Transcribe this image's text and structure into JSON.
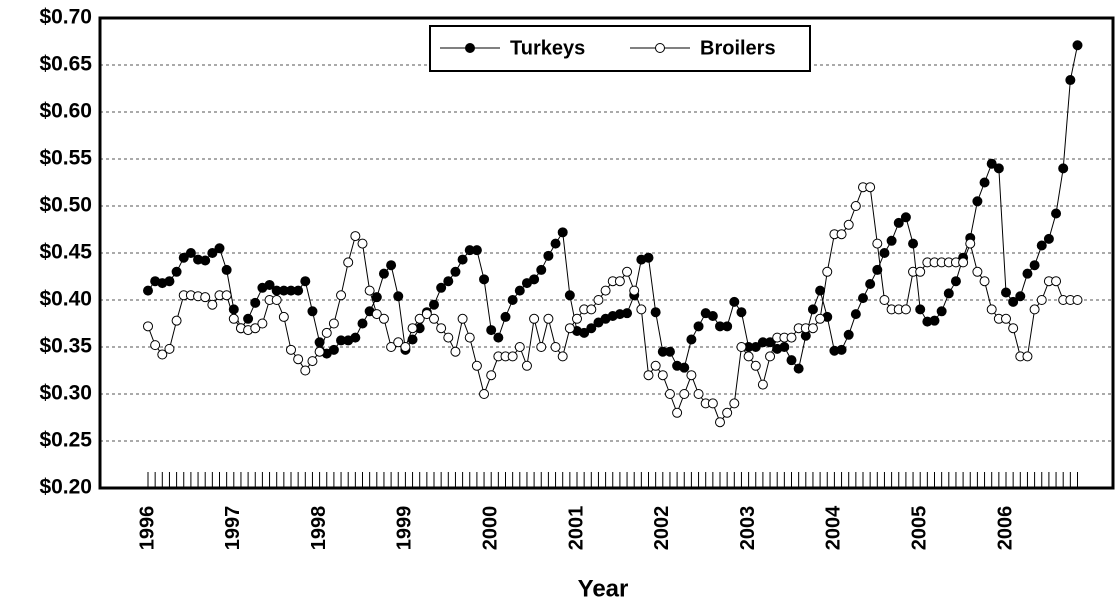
{
  "chart_data": {
    "type": "line",
    "xlabel": "Year",
    "categories": [
      "1996",
      null,
      null,
      null,
      null,
      null,
      null,
      null,
      null,
      null,
      null,
      null,
      "1997",
      null,
      null,
      null,
      null,
      null,
      null,
      null,
      null,
      null,
      null,
      null,
      "1998",
      null,
      null,
      null,
      null,
      null,
      null,
      null,
      null,
      null,
      null,
      null,
      "1999",
      null,
      null,
      null,
      null,
      null,
      null,
      null,
      null,
      null,
      null,
      null,
      "2000",
      null,
      null,
      null,
      null,
      null,
      null,
      null,
      null,
      null,
      null,
      null,
      "2001",
      null,
      null,
      null,
      null,
      null,
      null,
      null,
      null,
      null,
      null,
      null,
      "2002",
      null,
      null,
      null,
      null,
      null,
      null,
      null,
      null,
      null,
      null,
      null,
      "2003",
      null,
      null,
      null,
      null,
      null,
      null,
      null,
      null,
      null,
      null,
      null,
      "2004",
      null,
      null,
      null,
      null,
      null,
      null,
      null,
      null,
      null,
      null,
      null,
      "2005",
      null,
      null,
      null,
      null,
      null,
      null,
      null,
      null,
      null,
      null,
      null,
      "2006",
      null,
      null,
      null,
      null,
      null,
      null,
      null,
      null,
      null,
      null
    ],
    "series": [
      {
        "name": "Turkeys",
        "color": "#000000",
        "marker": "filled",
        "values": [
          0.41,
          0.42,
          0.418,
          0.42,
          0.43,
          0.445,
          0.45,
          0.443,
          0.442,
          0.45,
          0.455,
          0.432,
          0.39,
          0.37,
          0.38,
          0.397,
          0.413,
          0.416,
          0.41,
          0.41,
          0.41,
          0.41,
          0.42,
          0.388,
          0.355,
          0.343,
          0.347,
          0.357,
          0.357,
          0.36,
          0.375,
          0.388,
          0.403,
          0.428,
          0.437,
          0.404,
          0.347,
          0.358,
          0.37,
          0.387,
          0.395,
          0.413,
          0.42,
          0.43,
          0.443,
          0.453,
          0.453,
          0.422,
          0.368,
          0.36,
          0.382,
          0.4,
          0.41,
          0.418,
          0.422,
          0.432,
          0.447,
          0.46,
          0.472,
          0.405,
          0.367,
          0.365,
          0.37,
          0.376,
          0.38,
          0.383,
          0.385,
          0.386,
          0.405,
          0.443,
          0.445,
          0.387,
          0.345,
          0.345,
          0.33,
          0.328,
          0.358,
          0.372,
          0.386,
          0.383,
          0.372,
          0.372,
          0.398,
          0.387,
          0.35,
          0.35,
          0.355,
          0.355,
          0.348,
          0.35,
          0.336,
          0.327,
          0.362,
          0.39,
          0.41,
          0.382,
          0.346,
          0.347,
          0.363,
          0.385,
          0.402,
          0.417,
          0.432,
          0.45,
          0.463,
          0.482,
          0.488,
          0.46,
          0.39,
          0.377,
          0.378,
          0.388,
          0.407,
          0.42,
          0.445,
          0.466,
          0.505,
          0.525,
          0.545,
          0.54,
          0.408,
          0.398,
          0.404,
          0.428,
          0.437,
          0.458,
          0.465,
          0.492,
          0.54,
          0.634,
          0.671
        ]
      },
      {
        "name": "Broilers",
        "color": "#000000",
        "marker": "open",
        "values": [
          0.372,
          0.352,
          0.342,
          0.348,
          0.378,
          0.405,
          0.405,
          0.404,
          0.403,
          0.395,
          0.405,
          0.405,
          0.38,
          0.37,
          0.368,
          0.37,
          0.375,
          0.4,
          0.4,
          0.382,
          0.347,
          0.337,
          0.325,
          0.335,
          0.345,
          0.365,
          0.375,
          0.405,
          0.44,
          0.468,
          0.46,
          0.41,
          0.385,
          0.38,
          0.35,
          0.355,
          0.35,
          0.37,
          0.38,
          0.385,
          0.38,
          0.37,
          0.36,
          0.345,
          0.38,
          0.36,
          0.33,
          0.3,
          0.32,
          0.34,
          0.34,
          0.34,
          0.35,
          0.33,
          0.38,
          0.35,
          0.38,
          0.35,
          0.34,
          0.37,
          0.38,
          0.39,
          0.39,
          0.4,
          0.41,
          0.42,
          0.42,
          0.43,
          0.41,
          0.39,
          0.32,
          0.33,
          0.32,
          0.3,
          0.28,
          0.3,
          0.32,
          0.3,
          0.29,
          0.29,
          0.27,
          0.28,
          0.29,
          0.35,
          0.34,
          0.33,
          0.31,
          0.34,
          0.36,
          0.36,
          0.36,
          0.37,
          0.37,
          0.37,
          0.38,
          0.43,
          0.47,
          0.47,
          0.48,
          0.5,
          0.52,
          0.52,
          0.46,
          0.4,
          0.39,
          0.39,
          0.39,
          0.43,
          0.43,
          0.44,
          0.44,
          0.44,
          0.44,
          0.44,
          0.44,
          0.46,
          0.43,
          0.42,
          0.39,
          0.38,
          0.38,
          0.37,
          0.34,
          0.34,
          0.39,
          0.4,
          0.42,
          0.42,
          0.4,
          0.4,
          0.4
        ]
      }
    ],
    "ylim": [
      0.2,
      0.7
    ],
    "yticks": [
      {
        "value": 0.2,
        "label": "$0.20"
      },
      {
        "value": 0.25,
        "label": "$0.25"
      },
      {
        "value": 0.3,
        "label": "$0.30"
      },
      {
        "value": 0.35,
        "label": "$0.35"
      },
      {
        "value": 0.4,
        "label": "$0.40"
      },
      {
        "value": 0.45,
        "label": "$0.45"
      },
      {
        "value": 0.5,
        "label": "$0.50"
      },
      {
        "value": 0.55,
        "label": "$0.55"
      },
      {
        "value": 0.6,
        "label": "$0.60"
      },
      {
        "value": 0.65,
        "label": "$0.65"
      },
      {
        "value": 0.7,
        "label": "$0.70"
      }
    ],
    "grid": true,
    "legend": "top"
  }
}
